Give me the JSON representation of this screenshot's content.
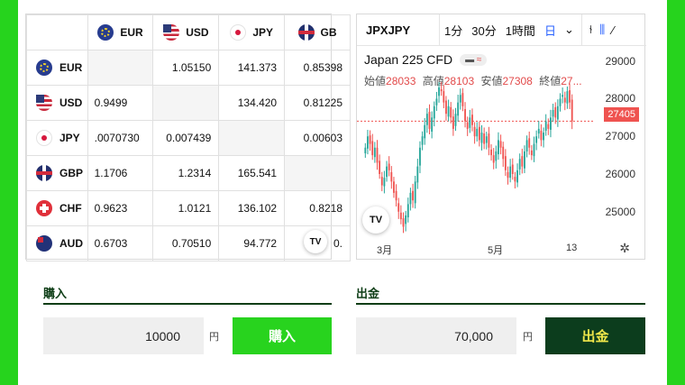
{
  "cross_rates": {
    "columns": [
      {
        "code": "EUR",
        "flag": "eu-flag-icon"
      },
      {
        "code": "USD",
        "flag": "us-flag-icon"
      },
      {
        "code": "JPY",
        "flag": "jp-flag-icon"
      },
      {
        "code": "GB",
        "flag": "gb-flag-icon"
      }
    ],
    "rows": [
      {
        "code": "EUR",
        "flag": "eu-flag-icon",
        "cells": [
          "",
          "1.05150",
          "141.373",
          "0.85398"
        ]
      },
      {
        "code": "USD",
        "flag": "us-flag-icon",
        "cells": [
          "0.9499",
          "",
          "134.420",
          "0.81225"
        ]
      },
      {
        "code": "JPY",
        "flag": "jp-flag-icon",
        "cells": ".0070730",
        "cells_list": [
          ".0070730",
          "0.007439",
          "",
          "0.00603"
        ]
      },
      {
        "code": "GBP",
        "flag": "gb-flag-icon",
        "cells": [
          "1.1706",
          "1.2314",
          "165.541",
          ""
        ]
      },
      {
        "code": "CHF",
        "flag": "ch-flag-icon",
        "cells": [
          "0.9623",
          "1.0121",
          "136.102",
          "0.8218"
        ]
      },
      {
        "code": "AUD",
        "flag": "au-flag-icon",
        "cells": [
          "0.6703",
          "0.70510",
          "94.772",
          "0."
        ]
      }
    ],
    "badge": "TV"
  },
  "chart": {
    "symbol": "JPXJPY",
    "timeframes": [
      "1分",
      "30分",
      "1時間",
      "日"
    ],
    "active_timeframe": "日",
    "dropdown_icon": "chevron-down-icon",
    "instrument": "Japan 225 CFD",
    "ohlc": [
      {
        "label": "始値",
        "value": "28033"
      },
      {
        "label": "高値",
        "value": "28103"
      },
      {
        "label": "安値",
        "value": "27308"
      },
      {
        "label": "終値",
        "value": "27..."
      }
    ],
    "last_price": "27405",
    "x_ticks": [
      "3月",
      "5月",
      "13"
    ],
    "colors": {
      "up": "#26a69a",
      "down": "#ef5350"
    }
  },
  "chart_data": {
    "type": "candlestick",
    "title": "Japan 225 CFD",
    "ylim": [
      24300,
      29400
    ],
    "y_ticks": [
      25000,
      26000,
      27000,
      28000,
      29000
    ],
    "x_ticks": [
      "3月",
      "5月",
      "13"
    ],
    "last_price": 27405,
    "series": [
      {
        "name": "Japan 225 CFD",
        "close": [
          26700,
          27000,
          26800,
          26500,
          26700,
          26300,
          26000,
          25700,
          25900,
          26200,
          26100,
          25800,
          25500,
          25300,
          25000,
          24800,
          24600,
          24900,
          25200,
          25500,
          25300,
          25800,
          26200,
          26700,
          27000,
          27300,
          27600,
          27200,
          27500,
          27800,
          28000,
          28300,
          28200,
          27900,
          27600,
          27800,
          27500,
          27200,
          27600,
          27900,
          28100,
          27800,
          27400,
          27200,
          27500,
          27300,
          27000,
          27200,
          26900,
          27100,
          26800,
          27000,
          26700,
          26500,
          26300,
          26600,
          26900,
          26700,
          26400,
          26100,
          25900,
          26200,
          26000,
          25800,
          26100,
          26400,
          26200,
          26600,
          26900,
          26700,
          26500,
          26800,
          27000,
          27200,
          26900,
          27100,
          27400,
          27200,
          27500,
          27700,
          27500,
          27800,
          28000,
          28100,
          27900,
          28200,
          27900,
          27400
        ]
      }
    ]
  },
  "buy": {
    "title": "購入",
    "amount": "10000",
    "unit": "円",
    "button": "購入"
  },
  "withdraw": {
    "title": "出金",
    "amount": "70,000",
    "unit": "円",
    "button": "出金"
  }
}
